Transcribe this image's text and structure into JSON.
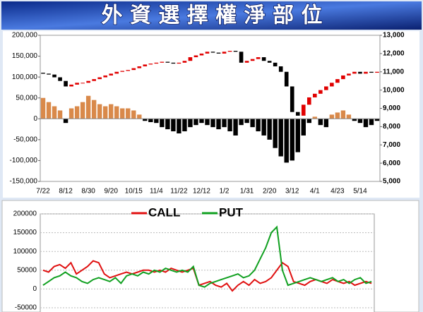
{
  "chart_data": [
    {
      "type": "bar",
      "title": "外 資 選 擇 權 淨 部 位",
      "categories": [
        "7/22",
        null,
        null,
        null,
        "8/12",
        null,
        null,
        null,
        "8/30",
        null,
        null,
        null,
        "9/20",
        null,
        null,
        null,
        "10/15",
        null,
        null,
        null,
        "11/4",
        null,
        null,
        null,
        "11/22",
        null,
        null,
        null,
        "12/12",
        null,
        null,
        null,
        "1/2",
        null,
        null,
        null,
        "1/31",
        null,
        null,
        null,
        "2/20",
        null,
        null,
        null,
        "3/12",
        null,
        null,
        null,
        "4/1",
        null,
        null,
        null,
        "4/23",
        null,
        null,
        null,
        "5/14",
        null,
        null,
        null
      ],
      "series": [
        {
          "color": "#d9894a",
          "negative_color": "#000000",
          "values": [
            50000,
            40000,
            30000,
            20000,
            -10000,
            25000,
            30000,
            40000,
            55000,
            45000,
            35000,
            30000,
            35000,
            30000,
            25000,
            25000,
            20000,
            10000,
            -5000,
            -8000,
            -10000,
            -20000,
            -25000,
            -30000,
            -35000,
            -30000,
            -20000,
            -15000,
            -10000,
            -15000,
            -20000,
            -25000,
            -20000,
            -30000,
            -40000,
            -15000,
            -10000,
            -20000,
            -30000,
            -40000,
            -50000,
            -70000,
            -90000,
            -105000,
            -100000,
            -80000,
            -40000,
            -10000,
            5000,
            -15000,
            -20000,
            10000,
            15000,
            20000,
            10000,
            -5000,
            -10000,
            -20000,
            -15000,
            -5000
          ]
        },
        {
          "type": "candlestick",
          "axis": "y2",
          "up_color": "#e00000",
          "down_color": "#000000",
          "open": [
            10950,
            10900,
            10850,
            10700,
            10500,
            10200,
            10300,
            10400,
            10400,
            10500,
            10600,
            10700,
            10800,
            10900,
            11000,
            11050,
            11100,
            11200,
            11300,
            11400,
            11450,
            11500,
            11550,
            11500,
            11450,
            11500,
            11600,
            11800,
            11900,
            12000,
            12100,
            12050,
            12000,
            12100,
            12150,
            12100,
            11500,
            11600,
            11700,
            11800,
            11600,
            11500,
            11300,
            11000,
            10200,
            8800,
            8600,
            9200,
            9600,
            9800,
            10000,
            10200,
            10400,
            10600,
            10800,
            10900,
            11000,
            10900,
            11000,
            10950
          ],
          "close": [
            10900,
            10850,
            10700,
            10500,
            10200,
            10300,
            10400,
            10400,
            10500,
            10600,
            10700,
            10800,
            10900,
            11000,
            11050,
            11100,
            11200,
            11300,
            11400,
            11450,
            11500,
            11550,
            11500,
            11450,
            11500,
            11600,
            11800,
            11900,
            12000,
            12100,
            12050,
            12000,
            12100,
            12150,
            12100,
            11500,
            11600,
            11700,
            11800,
            11600,
            11500,
            11300,
            11000,
            10200,
            8800,
            8600,
            9200,
            9600,
            9800,
            10000,
            10200,
            10400,
            10600,
            10800,
            10900,
            11000,
            10900,
            11000,
            10950,
            11000
          ]
        }
      ],
      "ylim": [
        -150000,
        200000
      ],
      "yticks": [
        {
          "value": 200000,
          "label": "200,000"
        },
        {
          "value": 150000,
          "label": "150,000"
        },
        {
          "value": 100000,
          "label": "100,000"
        },
        {
          "value": 50000,
          "label": "50,000"
        },
        0,
        {
          "value": -50000,
          "label": "-50,000"
        },
        {
          "value": -100000,
          "label": "-100,000"
        },
        {
          "value": -150000,
          "label": "-150,000"
        }
      ],
      "y2lim": [
        5000,
        13000
      ],
      "y2ticks": [
        {
          "value": 13000,
          "label": "13,000"
        },
        {
          "value": 12000,
          "label": "12,000"
        },
        {
          "value": 11000,
          "label": "11,000"
        },
        {
          "value": 10000,
          "label": "10,000"
        },
        {
          "value": 9000,
          "label": "9,000"
        },
        {
          "value": 8000,
          "label": "8,000"
        },
        {
          "value": 7000,
          "label": "7,000"
        },
        {
          "value": 6000,
          "label": "6,000"
        },
        {
          "value": 5000,
          "label": "5,000"
        }
      ],
      "y2_color": "#1e2fd0",
      "grid": false
    },
    {
      "type": "line",
      "series": [
        {
          "name": "CALL",
          "color": "#e01010",
          "values": [
            50000,
            45000,
            60000,
            65000,
            55000,
            70000,
            40000,
            50000,
            60000,
            75000,
            70000,
            40000,
            30000,
            35000,
            40000,
            45000,
            40000,
            45000,
            50000,
            50000,
            45000,
            50000,
            45000,
            55000,
            50000,
            45000,
            50000,
            55000,
            10000,
            15000,
            20000,
            10000,
            5000,
            15000,
            -5000,
            10000,
            20000,
            10000,
            25000,
            15000,
            20000,
            30000,
            50000,
            70000,
            60000,
            20000,
            15000,
            10000,
            20000,
            25000,
            20000,
            15000,
            25000,
            20000,
            15000,
            20000,
            10000,
            15000,
            20000,
            15000
          ]
        },
        {
          "name": "PUT",
          "color": "#10a020",
          "values": [
            10000,
            20000,
            30000,
            35000,
            45000,
            35000,
            30000,
            20000,
            15000,
            25000,
            30000,
            25000,
            20000,
            30000,
            15000,
            35000,
            40000,
            35000,
            45000,
            40000,
            50000,
            45000,
            55000,
            50000,
            45000,
            50000,
            45000,
            60000,
            10000,
            5000,
            15000,
            20000,
            25000,
            30000,
            35000,
            40000,
            30000,
            35000,
            50000,
            80000,
            110000,
            150000,
            165000,
            50000,
            10000,
            15000,
            20000,
            25000,
            30000,
            25000,
            20000,
            25000,
            30000,
            20000,
            25000,
            15000,
            25000,
            30000,
            15000,
            20000
          ]
        }
      ],
      "ylim": [
        -50000,
        200000
      ],
      "yticks": [
        200000,
        150000,
        100000,
        50000,
        0,
        -50000
      ],
      "grid": true,
      "legend": "top",
      "legend_text_color": "#1e2fd0"
    }
  ]
}
